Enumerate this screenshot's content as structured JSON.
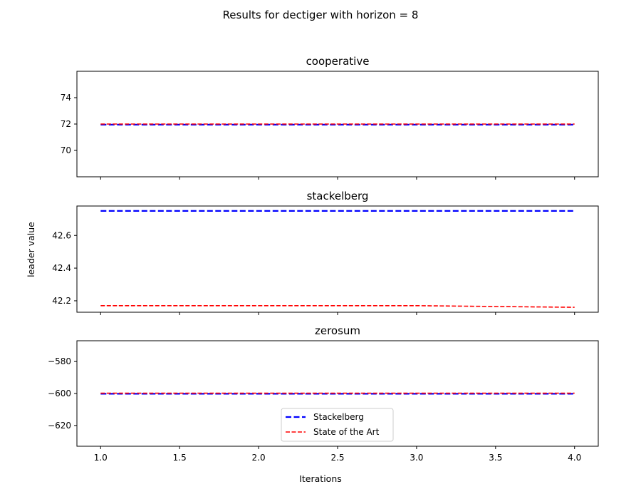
{
  "figure": {
    "title": "Results for dectiger with horizon = 8",
    "xlabel": "Iterations",
    "ylabel": "leader value"
  },
  "legend": {
    "placement": "lower-center",
    "entries": [
      {
        "label": "Stackelberg",
        "color": "#0000ff",
        "style": "dashed-thick"
      },
      {
        "label": "State of the Art",
        "color": "#ff0000",
        "style": "dashed"
      }
    ]
  },
  "chart_data": [
    {
      "type": "line",
      "title": "cooperative",
      "x": [
        1,
        2,
        3,
        4
      ],
      "xlim": [
        0.85,
        4.15
      ],
      "ylim": [
        68,
        76
      ],
      "yticks": [
        70,
        72,
        74
      ],
      "ytick_labels": [
        "70",
        "72",
        "74"
      ],
      "series": [
        {
          "name": "Stackelberg",
          "color": "#0000ff",
          "values": [
            71.95,
            71.95,
            71.95,
            71.95
          ]
        },
        {
          "name": "State of the Art",
          "color": "#ff0000",
          "values": [
            72.0,
            72.0,
            72.0,
            72.0
          ]
        }
      ]
    },
    {
      "type": "line",
      "title": "stackelberg",
      "x": [
        1,
        2,
        3,
        4
      ],
      "xlim": [
        0.85,
        4.15
      ],
      "ylim": [
        42.13,
        42.78
      ],
      "yticks": [
        42.2,
        42.4,
        42.6
      ],
      "ytick_labels": [
        "42.2",
        "42.4",
        "42.6"
      ],
      "series": [
        {
          "name": "Stackelberg",
          "color": "#0000ff",
          "values": [
            42.75,
            42.75,
            42.75,
            42.75
          ]
        },
        {
          "name": "State of the Art",
          "color": "#ff0000",
          "values": [
            42.17,
            42.17,
            42.17,
            42.16
          ]
        }
      ]
    },
    {
      "type": "line",
      "title": "zerosum",
      "x": [
        1,
        2,
        3,
        4
      ],
      "xlim": [
        0.85,
        4.15
      ],
      "ylim": [
        -633,
        -567
      ],
      "yticks": [
        -620,
        -600,
        -580
      ],
      "ytick_labels": [
        "−620",
        "−600",
        "−580"
      ],
      "xticks": [
        1.0,
        1.5,
        2.0,
        2.5,
        3.0,
        3.5,
        4.0
      ],
      "xtick_labels": [
        "1.0",
        "1.5",
        "2.0",
        "2.5",
        "3.0",
        "3.5",
        "4.0"
      ],
      "series": [
        {
          "name": "Stackelberg",
          "color": "#0000ff",
          "values": [
            -600.2,
            -600.2,
            -600.2,
            -600.2
          ]
        },
        {
          "name": "State of the Art",
          "color": "#ff0000",
          "values": [
            -599.8,
            -599.8,
            -599.8,
            -599.8
          ]
        }
      ]
    }
  ]
}
